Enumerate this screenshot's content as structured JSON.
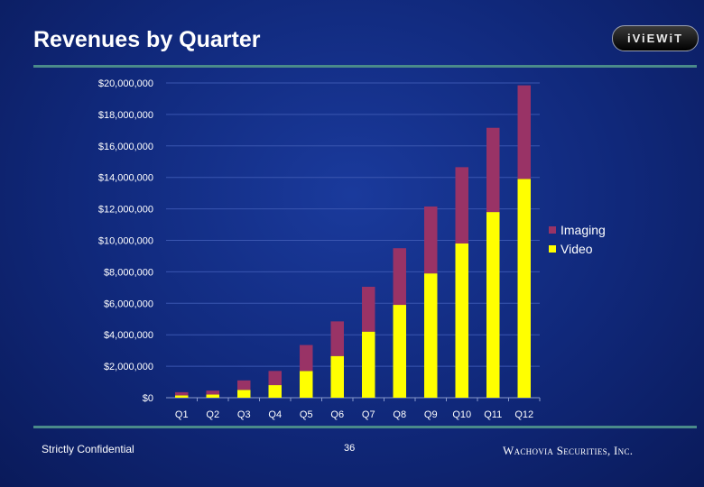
{
  "slide": {
    "title": "Revenues by Quarter",
    "logo_text": "iViEWiT",
    "footer_left": "Strictly Confidential",
    "page_number": "36",
    "footer_right": "Wachovia Securities, Inc."
  },
  "chart_data": {
    "type": "bar",
    "stacked": true,
    "title": "",
    "xlabel": "",
    "ylabel": "",
    "categories": [
      "Q1",
      "Q2",
      "Q3",
      "Q4",
      "Q5",
      "Q6",
      "Q7",
      "Q8",
      "Q9",
      "Q10",
      "Q11",
      "Q12"
    ],
    "series": [
      {
        "name": "Video",
        "color": "#ffff00",
        "values": [
          150000,
          200000,
          500000,
          800000,
          1700000,
          2650000,
          4200000,
          5900000,
          7900000,
          9800000,
          11800000,
          13900000
        ]
      },
      {
        "name": "Imaging",
        "color": "#993366",
        "values": [
          200000,
          250000,
          600000,
          900000,
          1650000,
          2200000,
          2850000,
          3600000,
          4250000,
          4850000,
          5350000,
          5950000
        ]
      }
    ],
    "ylim": [
      0,
      20000000
    ],
    "yticks": [
      0,
      2000000,
      4000000,
      6000000,
      8000000,
      10000000,
      12000000,
      14000000,
      16000000,
      18000000,
      20000000
    ],
    "ytick_labels": [
      "$0",
      "$2,000,000",
      "$4,000,000",
      "$6,000,000",
      "$8,000,000",
      "$10,000,000",
      "$12,000,000",
      "$14,000,000",
      "$16,000,000",
      "$18,000,000",
      "$20,000,000"
    ],
    "grid": true,
    "legend": {
      "position": "right",
      "entries": [
        "Imaging",
        "Video"
      ]
    },
    "colors": {
      "video": "#ffff00",
      "imaging": "#993366",
      "gridline": "#3a56b0",
      "axis": "#8899cc"
    }
  }
}
